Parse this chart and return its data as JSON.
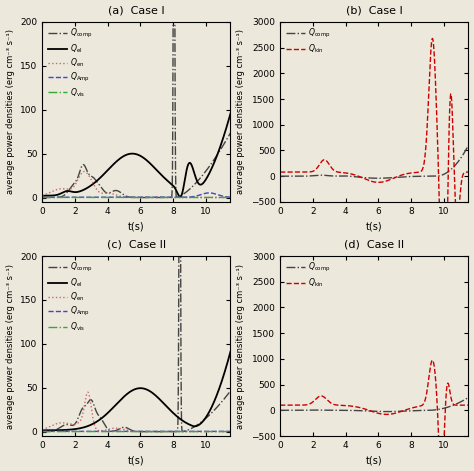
{
  "fig_width": 4.74,
  "fig_height": 4.71,
  "dpi": 100,
  "background_color": "#ede8dc",
  "panels": [
    {
      "label": "(a)  Case I",
      "ylim": [
        -5,
        200
      ],
      "xlim": [
        0,
        11.5
      ],
      "yticks": [
        0,
        50,
        100,
        150,
        200
      ],
      "xticks": [
        0,
        2,
        4,
        6,
        8,
        10
      ],
      "ylabel": "average power densities (erg cm⁻³ s⁻¹)",
      "xlabel": "t(s)",
      "legend_entries": [
        "Q_comp",
        "Q_el",
        "Q_en",
        "Q_Amp",
        "Q_vis"
      ],
      "legend_styles": [
        {
          "color": "#444444",
          "ls": "-.",
          "lw": 1.0
        },
        {
          "color": "#000000",
          "ls": "-",
          "lw": 1.3
        },
        {
          "color": "#cc6666",
          "ls": ":",
          "lw": 1.0
        },
        {
          "color": "#4444cc",
          "ls": "--",
          "lw": 1.0
        },
        {
          "color": "#33aa33",
          "ls": "-.",
          "lw": 1.0
        }
      ]
    },
    {
      "label": "(b)  Case I",
      "ylim": [
        -500,
        3000
      ],
      "xlim": [
        0,
        11.5
      ],
      "yticks": [
        -500,
        0,
        500,
        1000,
        1500,
        2000,
        2500,
        3000
      ],
      "xticks": [
        0,
        2,
        4,
        6,
        8,
        10
      ],
      "ylabel": "average power densities (erg cm⁻³ s⁻¹)",
      "xlabel": "t(s)",
      "legend_entries": [
        "Q_comp",
        "Q_kin"
      ],
      "legend_styles": [
        {
          "color": "#444444",
          "ls": "-.",
          "lw": 1.0
        },
        {
          "color": "#cc0000",
          "ls": "--",
          "lw": 1.0
        }
      ]
    },
    {
      "label": "(c)  Case II",
      "ylim": [
        -5,
        200
      ],
      "xlim": [
        0,
        11.5
      ],
      "yticks": [
        0,
        50,
        100,
        150,
        200
      ],
      "xticks": [
        0,
        2,
        4,
        6,
        8,
        10
      ],
      "ylabel": "average power densities (erg cm⁻³ s⁻¹)",
      "xlabel": "t(s)",
      "legend_entries": [
        "Q_comp",
        "Q_el",
        "Q_en",
        "Q_Amp",
        "Q_vis"
      ],
      "legend_styles": [
        {
          "color": "#444444",
          "ls": "-.",
          "lw": 1.0
        },
        {
          "color": "#000000",
          "ls": "-",
          "lw": 1.3
        },
        {
          "color": "#cc6666",
          "ls": ":",
          "lw": 1.0
        },
        {
          "color": "#4444cc",
          "ls": "--",
          "lw": 1.0
        },
        {
          "color": "#33aa33",
          "ls": "-.",
          "lw": 1.0
        }
      ]
    },
    {
      "label": "(d)  Case II",
      "ylim": [
        -500,
        3000
      ],
      "xlim": [
        0,
        11.5
      ],
      "yticks": [
        -500,
        0,
        500,
        1000,
        1500,
        2000,
        2500,
        3000
      ],
      "xticks": [
        0,
        2,
        4,
        6,
        8,
        10
      ],
      "ylabel": "average power densities (erg cm⁻³ s⁻¹)",
      "xlabel": "t(s)",
      "legend_entries": [
        "Q_comp",
        "Q_kin"
      ],
      "legend_styles": [
        {
          "color": "#444444",
          "ls": "-.",
          "lw": 1.0
        },
        {
          "color": "#cc0000",
          "ls": "--",
          "lw": 1.0
        }
      ]
    }
  ]
}
